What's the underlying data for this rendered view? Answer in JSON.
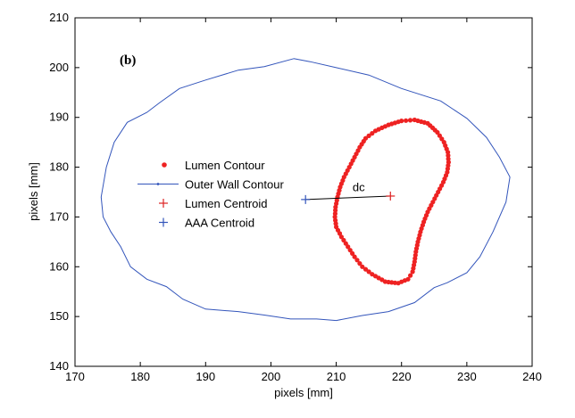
{
  "chart_data": {
    "type": "scatter",
    "panel_label": "(b)",
    "xlabel": "pixels [mm]",
    "ylabel": "pixels [mm]",
    "xlim": [
      170,
      240
    ],
    "ylim": [
      140,
      210
    ],
    "xticks": [
      170,
      180,
      190,
      200,
      210,
      220,
      230,
      240
    ],
    "yticks": [
      140,
      150,
      160,
      170,
      180,
      190,
      200,
      210
    ],
    "grid": false,
    "legend_position": "left",
    "colors": {
      "lumen": "#ee2222",
      "outer_wall": "#3355bb",
      "lumen_centroid": "#dd2222",
      "aaa_centroid": "#3355bb",
      "dc_line": "#000000"
    },
    "series": [
      {
        "name": "Lumen Contour",
        "style": "red dots",
        "points": [
          [
            222,
            189.5
          ],
          [
            224,
            188.8
          ],
          [
            225.5,
            187
          ],
          [
            226.5,
            185
          ],
          [
            227.1,
            183
          ],
          [
            227.2,
            181
          ],
          [
            227,
            179
          ],
          [
            226.4,
            177
          ],
          [
            225.6,
            175
          ],
          [
            224.8,
            173
          ],
          [
            224,
            171
          ],
          [
            223.4,
            169
          ],
          [
            222.9,
            167
          ],
          [
            222.5,
            165
          ],
          [
            222.2,
            163
          ],
          [
            222,
            161
          ],
          [
            221.7,
            159
          ],
          [
            221,
            157.5
          ],
          [
            219.5,
            156.7
          ],
          [
            217.5,
            157
          ],
          [
            215.5,
            158.5
          ],
          [
            214,
            160
          ],
          [
            212.8,
            162
          ],
          [
            211.8,
            164
          ],
          [
            210.8,
            166
          ],
          [
            210,
            168
          ],
          [
            209.8,
            170
          ],
          [
            209.9,
            172
          ],
          [
            210.2,
            174
          ],
          [
            210.6,
            176
          ],
          [
            211.2,
            178
          ],
          [
            212,
            180
          ],
          [
            212.8,
            182
          ],
          [
            213.6,
            184
          ],
          [
            214.5,
            185.8
          ],
          [
            216,
            187.3
          ],
          [
            218,
            188.5
          ],
          [
            220,
            189.3
          ],
          [
            222,
            189.5
          ]
        ]
      },
      {
        "name": "Outer Wall Contour",
        "style": "blue line",
        "points": [
          [
            203.5,
            201.8
          ],
          [
            199,
            200.2
          ],
          [
            195,
            199.5
          ],
          [
            190,
            197.5
          ],
          [
            186,
            195.8
          ],
          [
            183,
            193
          ],
          [
            181,
            191
          ],
          [
            178,
            189
          ],
          [
            176,
            185
          ],
          [
            174.8,
            180
          ],
          [
            174,
            174
          ],
          [
            174.3,
            170
          ],
          [
            175.5,
            167
          ],
          [
            177,
            164
          ],
          [
            178.5,
            160
          ],
          [
            181,
            157.5
          ],
          [
            184,
            156
          ],
          [
            186.5,
            153.5
          ],
          [
            190,
            151.5
          ],
          [
            195,
            151
          ],
          [
            199,
            150.3
          ],
          [
            203,
            149.5
          ],
          [
            207,
            149.5
          ],
          [
            210,
            149.2
          ],
          [
            214,
            150.2
          ],
          [
            218,
            151
          ],
          [
            222,
            152.8
          ],
          [
            225,
            155.8
          ],
          [
            227,
            156.8
          ],
          [
            230,
            158.8
          ],
          [
            232,
            162
          ],
          [
            234,
            167
          ],
          [
            236,
            173
          ],
          [
            236.6,
            178
          ],
          [
            235,
            182
          ],
          [
            233,
            186
          ],
          [
            230,
            189.8
          ],
          [
            226,
            193.3
          ],
          [
            220,
            195.8
          ],
          [
            215,
            198.5
          ],
          [
            210,
            200
          ],
          [
            206,
            201.2
          ],
          [
            203.5,
            201.8
          ]
        ]
      },
      {
        "name": "Lumen Centroid",
        "style": "red plus",
        "points": [
          [
            218.3,
            174.2
          ]
        ]
      },
      {
        "name": "AAA Centroid",
        "style": "blue plus",
        "points": [
          [
            205.3,
            173.5
          ]
        ]
      }
    ],
    "annotations": [
      {
        "text": "dc",
        "x": 212.5,
        "y": 175.2
      }
    ]
  }
}
